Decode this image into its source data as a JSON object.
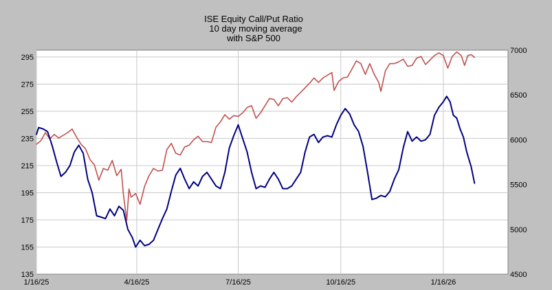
{
  "chart_data": {
    "type": "line",
    "title": [
      "ISE Equity Call/Put Ratio",
      "10 day moving average",
      "with S&P 500"
    ],
    "x_ticks": [
      "1/16/25",
      "4/16/25",
      "7/16/25",
      "10/16/25",
      "1/16/26"
    ],
    "x_range": [
      "1/16/25",
      "3/15/26"
    ],
    "left_axis": {
      "ylim": [
        135,
        300
      ],
      "ticks": [
        135,
        155,
        175,
        195,
        215,
        235,
        255,
        275,
        295
      ]
    },
    "right_axis": {
      "ylim": [
        4500,
        7000
      ],
      "ticks": [
        4500,
        5000,
        5500,
        6000,
        6500,
        7000
      ]
    },
    "grid": true,
    "series": [
      {
        "axis": "left",
        "color": "#000080",
        "points": [
          [
            "1/16/25",
            238
          ],
          [
            "1/18/25",
            243
          ],
          [
            "1/22/25",
            242
          ],
          [
            "1/26/25",
            240
          ],
          [
            "1/30/25",
            230
          ],
          [
            "2/3/25",
            218
          ],
          [
            "2/7/25",
            207
          ],
          [
            "2/11/25",
            210
          ],
          [
            "2/15/25",
            215
          ],
          [
            "2/19/25",
            225
          ],
          [
            "2/23/25",
            230
          ],
          [
            "2/27/25",
            224
          ],
          [
            "3/3/25",
            205
          ],
          [
            "3/7/25",
            195
          ],
          [
            "3/11/25",
            178
          ],
          [
            "3/15/25",
            177
          ],
          [
            "3/19/25",
            176
          ],
          [
            "3/23/25",
            183
          ],
          [
            "3/27/25",
            178
          ],
          [
            "3/31/25",
            185
          ],
          [
            "4/4/25",
            182
          ],
          [
            "4/8/25",
            168
          ],
          [
            "4/12/25",
            162
          ],
          [
            "4/15/25",
            155
          ],
          [
            "4/19/25",
            160
          ],
          [
            "4/23/25",
            156
          ],
          [
            "4/27/25",
            157
          ],
          [
            "5/1/25",
            160
          ],
          [
            "5/5/25",
            168
          ],
          [
            "5/9/25",
            176
          ],
          [
            "5/13/25",
            183
          ],
          [
            "5/17/25",
            196
          ],
          [
            "5/21/25",
            208
          ],
          [
            "5/25/25",
            213
          ],
          [
            "5/29/25",
            205
          ],
          [
            "6/2/25",
            198
          ],
          [
            "6/6/25",
            203
          ],
          [
            "6/10/25",
            200
          ],
          [
            "6/14/25",
            207
          ],
          [
            "6/18/25",
            210
          ],
          [
            "6/22/25",
            205
          ],
          [
            "6/26/25",
            200
          ],
          [
            "6/30/25",
            198
          ],
          [
            "7/4/25",
            210
          ],
          [
            "7/8/25",
            228
          ],
          [
            "7/12/25",
            237
          ],
          [
            "7/16/25",
            245
          ],
          [
            "7/20/25",
            235
          ],
          [
            "7/24/25",
            225
          ],
          [
            "7/28/25",
            210
          ],
          [
            "8/1/25",
            198
          ],
          [
            "8/5/25",
            200
          ],
          [
            "8/9/25",
            199
          ],
          [
            "8/13/25",
            205
          ],
          [
            "8/17/25",
            210
          ],
          [
            "8/21/25",
            205
          ],
          [
            "8/25/25",
            198
          ],
          [
            "8/29/25",
            198
          ],
          [
            "9/2/25",
            200
          ],
          [
            "9/6/25",
            205
          ],
          [
            "9/10/25",
            210
          ],
          [
            "9/14/25",
            225
          ],
          [
            "9/18/25",
            236
          ],
          [
            "9/22/25",
            238
          ],
          [
            "9/26/25",
            232
          ],
          [
            "9/30/25",
            236
          ],
          [
            "10/4/25",
            237
          ],
          [
            "10/8/25",
            236
          ],
          [
            "10/12/25",
            245
          ],
          [
            "10/16/25",
            252
          ],
          [
            "10/20/25",
            257
          ],
          [
            "10/24/25",
            253
          ],
          [
            "10/28/25",
            245
          ],
          [
            "11/1/25",
            240
          ],
          [
            "11/5/25",
            229
          ],
          [
            "11/9/25",
            210
          ],
          [
            "11/13/25",
            190
          ],
          [
            "11/17/25",
            191
          ],
          [
            "11/21/25",
            193
          ],
          [
            "11/25/25",
            192
          ],
          [
            "11/29/25",
            196
          ],
          [
            "12/3/25",
            205
          ],
          [
            "12/7/25",
            212
          ],
          [
            "12/11/25",
            228
          ],
          [
            "12/15/25",
            240
          ],
          [
            "12/19/25",
            233
          ],
          [
            "12/23/25",
            236
          ],
          [
            "12/27/25",
            233
          ],
          [
            "12/31/25",
            234
          ],
          [
            "1/4/26",
            238
          ],
          [
            "1/8/26",
            252
          ],
          [
            "1/12/26",
            258
          ],
          [
            "1/16/26",
            262
          ],
          [
            "1/19/26",
            266
          ],
          [
            "1/22/26",
            262
          ],
          [
            "1/25/26",
            252
          ],
          [
            "1/28/26",
            250
          ],
          [
            "1/31/26",
            242
          ],
          [
            "2/3/26",
            236
          ],
          [
            "2/6/26",
            225
          ],
          [
            "2/10/26",
            214
          ],
          [
            "2/13/26",
            202
          ]
        ]
      },
      {
        "axis": "right",
        "color": "#c0504d",
        "points": [
          [
            "1/16/25",
            5950
          ],
          [
            "1/20/25",
            5990
          ],
          [
            "1/24/25",
            6080
          ],
          [
            "1/28/25",
            6010
          ],
          [
            "2/1/25",
            6060
          ],
          [
            "2/5/25",
            6020
          ],
          [
            "2/9/25",
            6050
          ],
          [
            "2/13/25",
            6080
          ],
          [
            "2/17/25",
            6120
          ],
          [
            "2/21/25",
            6030
          ],
          [
            "2/25/25",
            5950
          ],
          [
            "3/1/25",
            5900
          ],
          [
            "3/5/25",
            5780
          ],
          [
            "3/9/25",
            5720
          ],
          [
            "3/13/25",
            5550
          ],
          [
            "3/17/25",
            5680
          ],
          [
            "3/21/25",
            5660
          ],
          [
            "3/25/25",
            5770
          ],
          [
            "3/29/25",
            5600
          ],
          [
            "4/2/25",
            5670
          ],
          [
            "4/4/25",
            5390
          ],
          [
            "4/7/25",
            5100
          ],
          [
            "4/9/25",
            5450
          ],
          [
            "4/11/25",
            5360
          ],
          [
            "4/15/25",
            5400
          ],
          [
            "4/19/25",
            5280
          ],
          [
            "4/23/25",
            5480
          ],
          [
            "4/27/25",
            5600
          ],
          [
            "5/1/25",
            5680
          ],
          [
            "5/5/25",
            5650
          ],
          [
            "5/9/25",
            5660
          ],
          [
            "5/13/25",
            5890
          ],
          [
            "5/17/25",
            5960
          ],
          [
            "5/21/25",
            5850
          ],
          [
            "5/25/25",
            5830
          ],
          [
            "5/29/25",
            5920
          ],
          [
            "6/2/25",
            5940
          ],
          [
            "6/6/25",
            6000
          ],
          [
            "6/10/25",
            6040
          ],
          [
            "6/14/25",
            5980
          ],
          [
            "6/18/25",
            5980
          ],
          [
            "6/22/25",
            5970
          ],
          [
            "6/26/25",
            6140
          ],
          [
            "6/30/25",
            6200
          ],
          [
            "7/4/25",
            6280
          ],
          [
            "7/8/25",
            6230
          ],
          [
            "7/12/25",
            6270
          ],
          [
            "7/16/25",
            6260
          ],
          [
            "7/20/25",
            6300
          ],
          [
            "7/24/25",
            6360
          ],
          [
            "7/28/25",
            6380
          ],
          [
            "8/1/25",
            6240
          ],
          [
            "8/5/25",
            6300
          ],
          [
            "8/9/25",
            6380
          ],
          [
            "8/13/25",
            6460
          ],
          [
            "8/17/25",
            6450
          ],
          [
            "8/21/25",
            6380
          ],
          [
            "8/25/25",
            6460
          ],
          [
            "8/29/25",
            6470
          ],
          [
            "9/2/25",
            6420
          ],
          [
            "9/6/25",
            6480
          ],
          [
            "9/10/25",
            6530
          ],
          [
            "9/14/25",
            6580
          ],
          [
            "9/18/25",
            6630
          ],
          [
            "9/22/25",
            6690
          ],
          [
            "9/26/25",
            6640
          ],
          [
            "9/30/25",
            6690
          ],
          [
            "10/4/25",
            6720
          ],
          [
            "10/8/25",
            6750
          ],
          [
            "10/10/25",
            6550
          ],
          [
            "10/14/25",
            6650
          ],
          [
            "10/18/25",
            6690
          ],
          [
            "10/22/25",
            6700
          ],
          [
            "10/26/25",
            6790
          ],
          [
            "10/30/25",
            6880
          ],
          [
            "11/3/25",
            6850
          ],
          [
            "11/7/25",
            6730
          ],
          [
            "11/11/25",
            6850
          ],
          [
            "11/15/25",
            6730
          ],
          [
            "11/19/25",
            6640
          ],
          [
            "11/21/25",
            6540
          ],
          [
            "11/25/25",
            6770
          ],
          [
            "11/29/25",
            6850
          ],
          [
            "12/3/25",
            6850
          ],
          [
            "12/7/25",
            6870
          ],
          [
            "12/11/25",
            6900
          ],
          [
            "12/15/25",
            6820
          ],
          [
            "12/19/25",
            6830
          ],
          [
            "12/23/25",
            6910
          ],
          [
            "12/27/25",
            6930
          ],
          [
            "12/31/25",
            6840
          ],
          [
            "1/4/26",
            6890
          ],
          [
            "1/8/26",
            6940
          ],
          [
            "1/12/26",
            6970
          ],
          [
            "1/16/26",
            6940
          ],
          [
            "1/20/26",
            6800
          ],
          [
            "1/24/26",
            6930
          ],
          [
            "1/28/26",
            6980
          ],
          [
            "2/1/26",
            6940
          ],
          [
            "2/4/26",
            6830
          ],
          [
            "2/7/26",
            6940
          ],
          [
            "2/10/26",
            6950
          ],
          [
            "2/13/26",
            6920
          ]
        ]
      }
    ]
  }
}
